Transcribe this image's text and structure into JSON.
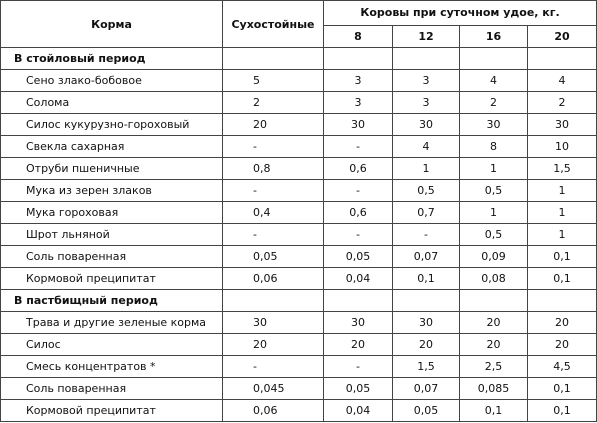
{
  "header": {
    "feed": "Корма",
    "dry": "Сухостойные",
    "cows": "Коровы при суточном удое, кг.",
    "yields": [
      "8",
      "12",
      "16",
      "20"
    ]
  },
  "sections": [
    {
      "title": "В стойловый период",
      "rows": [
        {
          "name": "Сено злако-бобовое",
          "values": [
            "5",
            "3",
            "3",
            "4",
            "4"
          ]
        },
        {
          "name": "Солома",
          "values": [
            "2",
            "3",
            "3",
            "2",
            "2"
          ]
        },
        {
          "name": "Силос кукурузно-гороховый",
          "values": [
            "20",
            "30",
            "30",
            "30",
            "30"
          ]
        },
        {
          "name": "Свекла сахарная",
          "values": [
            "-",
            "-",
            "4",
            "8",
            "10"
          ]
        },
        {
          "name": "Отруби пшеничные",
          "values": [
            "0,8",
            "0,6",
            "1",
            "1",
            "1,5"
          ]
        },
        {
          "name": "Мука из зерен злаков",
          "values": [
            "-",
            "-",
            "0,5",
            "0,5",
            "1"
          ]
        },
        {
          "name": "Мука гороховая",
          "values": [
            "0,4",
            "0,6",
            "0,7",
            "1",
            "1"
          ]
        },
        {
          "name": "Шрот льняной",
          "values": [
            "-",
            "-",
            "-",
            "0,5",
            "1"
          ]
        },
        {
          "name": "Соль поваренная",
          "values": [
            "0,05",
            "0,05",
            "0,07",
            "0,09",
            "0,1"
          ]
        },
        {
          "name": "Кормовой преципитат",
          "values": [
            "0,06",
            "0,04",
            "0,1",
            "0,08",
            "0,1"
          ]
        }
      ]
    },
    {
      "title": "В пастбищный период",
      "rows": [
        {
          "name": "Трава и другие зеленые корма",
          "values": [
            "30",
            "30",
            "30",
            "20",
            "20"
          ]
        },
        {
          "name": "Силос",
          "values": [
            "20",
            "20",
            "20",
            "20",
            "20"
          ]
        },
        {
          "name": "Смесь концентратов *",
          "values": [
            "-",
            "-",
            "1,5",
            "2,5",
            "4,5"
          ]
        },
        {
          "name": "Соль поваренная",
          "values": [
            "0,045",
            "0,05",
            "0,07",
            "0,085",
            "0,1"
          ]
        },
        {
          "name": "Кормовой преципитат",
          "values": [
            "0,06",
            "0,04",
            "0,05",
            "0,1",
            "0,1"
          ]
        }
      ]
    }
  ]
}
